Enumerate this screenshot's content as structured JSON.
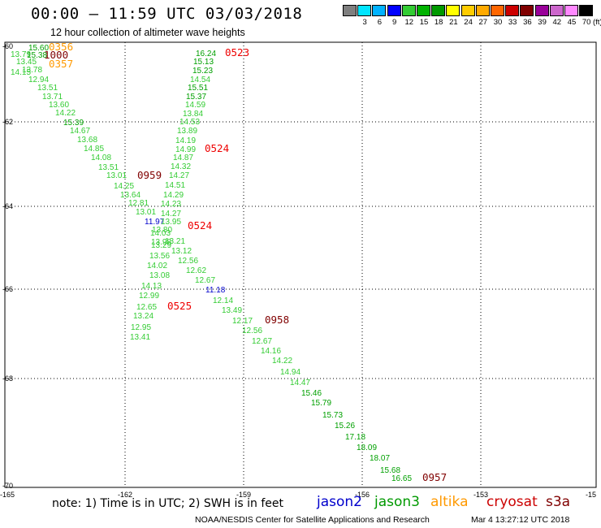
{
  "header": {
    "title": "00:00 – 11:59 UTC 03/03/2018",
    "subtitle": "12 hour collection of altimeter wave heights"
  },
  "colorbar": {
    "unit": "(ft)",
    "swatches": [
      {
        "label": "",
        "color": "#7f7f7f"
      },
      {
        "label": "3",
        "color": "#00e5ff"
      },
      {
        "label": "6",
        "color": "#00b2ff"
      },
      {
        "label": "9",
        "color": "#0000ff"
      },
      {
        "label": "12",
        "color": "#33cc33"
      },
      {
        "label": "15",
        "color": "#00b200"
      },
      {
        "label": "18",
        "color": "#009900"
      },
      {
        "label": "21",
        "color": "#ffff00"
      },
      {
        "label": "24",
        "color": "#ffcc00"
      },
      {
        "label": "27",
        "color": "#ffaa00"
      },
      {
        "label": "30",
        "color": "#ff6600"
      },
      {
        "label": "33",
        "color": "#cc0000"
      },
      {
        "label": "36",
        "color": "#800000"
      },
      {
        "label": "39",
        "color": "#990099"
      },
      {
        "label": "42",
        "color": "#cc66cc"
      },
      {
        "label": "45",
        "color": "#ff88ff"
      },
      {
        "label": "70",
        "color": "#000000"
      }
    ]
  },
  "axes": {
    "lon_ticks": [
      "-165",
      "-162",
      "-159",
      "-156",
      "-153",
      "-15"
    ],
    "lat_ticks": [
      "-60",
      "-62",
      "-64",
      "-66",
      "-68",
      "-70"
    ]
  },
  "legend": {
    "note": "note: 1) Time is in UTC; 2) SWH is in feet",
    "satellites": [
      {
        "name": "jason2",
        "color": "#0000cc"
      },
      {
        "name": "jason3",
        "color": "#009900"
      },
      {
        "name": "altika",
        "color": "#ff9900"
      },
      {
        "name": "cryosat",
        "color": "#cc0000"
      },
      {
        "name": "s3a",
        "color": "#800000"
      }
    ]
  },
  "credit": "NOAA/NESDIS Center for Satellite Applications and Research",
  "timestamp": "Mar  4 13:27:12 UTC 2018",
  "colors": {
    "light_green": "#33cc33",
    "dark_green": "#00a000",
    "blue": "#0000cc",
    "orange": "#ff9900",
    "red": "#ee0000",
    "maroon": "#800000"
  },
  "labels": [
    {
      "text": "15.60",
      "color": "#00a000"
    },
    {
      "text": "0356",
      "color": "#ff9900"
    },
    {
      "text": "13.79",
      "color": "#33cc33"
    },
    {
      "text": "15.38",
      "color": "#00a000"
    },
    {
      "text": "1000",
      "color": "#800000"
    },
    {
      "text": "13.45",
      "color": "#33cc33"
    },
    {
      "text": "0357",
      "color": "#ff9900"
    },
    {
      "text": "13.78",
      "color": "#33cc33"
    },
    {
      "text": "14.15",
      "color": "#33cc33"
    },
    {
      "text": "12.94",
      "color": "#33cc33"
    },
    {
      "text": "13.51",
      "color": "#33cc33"
    },
    {
      "text": "13.71",
      "color": "#33cc33"
    },
    {
      "text": "13.60",
      "color": "#33cc33"
    },
    {
      "text": "14.22",
      "color": "#33cc33"
    },
    {
      "text": "15.39",
      "color": "#00a000"
    },
    {
      "text": "14.67",
      "color": "#33cc33"
    },
    {
      "text": "13.68",
      "color": "#33cc33"
    },
    {
      "text": "14.85",
      "color": "#33cc33"
    },
    {
      "text": "14.08",
      "color": "#33cc33"
    },
    {
      "text": "13.51",
      "color": "#33cc33"
    },
    {
      "text": "13.01",
      "color": "#33cc33"
    },
    {
      "text": "0959",
      "color": "#800000"
    },
    {
      "text": "14.25",
      "color": "#33cc33"
    },
    {
      "text": "13.64",
      "color": "#33cc33"
    },
    {
      "text": "12.81",
      "color": "#33cc33"
    },
    {
      "text": "13.01",
      "color": "#33cc33"
    },
    {
      "text": "11.97",
      "color": "#0000cc"
    },
    {
      "text": "13.80",
      "color": "#33cc33"
    },
    {
      "text": "14.03",
      "color": "#33cc33"
    },
    {
      "text": "13.98",
      "color": "#33cc33"
    },
    {
      "text": "13.29",
      "color": "#33cc33"
    },
    {
      "text": "13.56",
      "color": "#33cc33"
    },
    {
      "text": "14.02",
      "color": "#33cc33"
    },
    {
      "text": "13.08",
      "color": "#33cc33"
    },
    {
      "text": "14.13",
      "color": "#33cc33"
    },
    {
      "text": "12.99",
      "color": "#33cc33"
    },
    {
      "text": "12.65",
      "color": "#33cc33"
    },
    {
      "text": "0525",
      "color": "#ee0000"
    },
    {
      "text": "13.24",
      "color": "#33cc33"
    },
    {
      "text": "12.95",
      "color": "#33cc33"
    },
    {
      "text": "13.41",
      "color": "#33cc33"
    },
    {
      "text": "16.24",
      "color": "#00a000"
    },
    {
      "text": "0523",
      "color": "#ee0000"
    },
    {
      "text": "15.13",
      "color": "#00a000"
    },
    {
      "text": "15.23",
      "color": "#00a000"
    },
    {
      "text": "14.54",
      "color": "#33cc33"
    },
    {
      "text": "15.51",
      "color": "#00a000"
    },
    {
      "text": "15.37",
      "color": "#00a000"
    },
    {
      "text": "14.59",
      "color": "#33cc33"
    },
    {
      "text": "13.84",
      "color": "#33cc33"
    },
    {
      "text": "14.53",
      "color": "#33cc33"
    },
    {
      "text": "13.89",
      "color": "#33cc33"
    },
    {
      "text": "14.19",
      "color": "#33cc33"
    },
    {
      "text": "14.99",
      "color": "#33cc33"
    },
    {
      "text": "0524",
      "color": "#ee0000"
    },
    {
      "text": "14.87",
      "color": "#33cc33"
    },
    {
      "text": "14.32",
      "color": "#33cc33"
    },
    {
      "text": "14.27",
      "color": "#33cc33"
    },
    {
      "text": "14.51",
      "color": "#33cc33"
    },
    {
      "text": "14.29",
      "color": "#33cc33"
    },
    {
      "text": "14.23",
      "color": "#33cc33"
    },
    {
      "text": "14.27",
      "color": "#33cc33"
    },
    {
      "text": "13.95",
      "color": "#33cc33"
    },
    {
      "text": "0524",
      "color": "#ee0000"
    },
    {
      "text": "13.21",
      "color": "#33cc33"
    },
    {
      "text": "13.12",
      "color": "#33cc33"
    },
    {
      "text": "12.56",
      "color": "#33cc33"
    },
    {
      "text": "12.62",
      "color": "#33cc33"
    },
    {
      "text": "12.67",
      "color": "#33cc33"
    },
    {
      "text": "11.18",
      "color": "#0000cc"
    },
    {
      "text": "12.14",
      "color": "#33cc33"
    },
    {
      "text": "13.49",
      "color": "#33cc33"
    },
    {
      "text": "12.17",
      "color": "#33cc33"
    },
    {
      "text": "0958",
      "color": "#800000"
    },
    {
      "text": "12.56",
      "color": "#33cc33"
    },
    {
      "text": "12.67",
      "color": "#33cc33"
    },
    {
      "text": "14.16",
      "color": "#33cc33"
    },
    {
      "text": "14.22",
      "color": "#33cc33"
    },
    {
      "text": "14.94",
      "color": "#33cc33"
    },
    {
      "text": "14.47",
      "color": "#33cc33"
    },
    {
      "text": "15.46",
      "color": "#00a000"
    },
    {
      "text": "15.79",
      "color": "#00a000"
    },
    {
      "text": "15.73",
      "color": "#00a000"
    },
    {
      "text": "15.26",
      "color": "#00a000"
    },
    {
      "text": "17.18",
      "color": "#00a000"
    },
    {
      "text": "18.09",
      "color": "#00a000"
    },
    {
      "text": "18.07",
      "color": "#00a000"
    },
    {
      "text": "15.68",
      "color": "#00a000"
    },
    {
      "text": "16.65",
      "color": "#00a000"
    },
    {
      "text": "0957",
      "color": "#800000"
    }
  ]
}
